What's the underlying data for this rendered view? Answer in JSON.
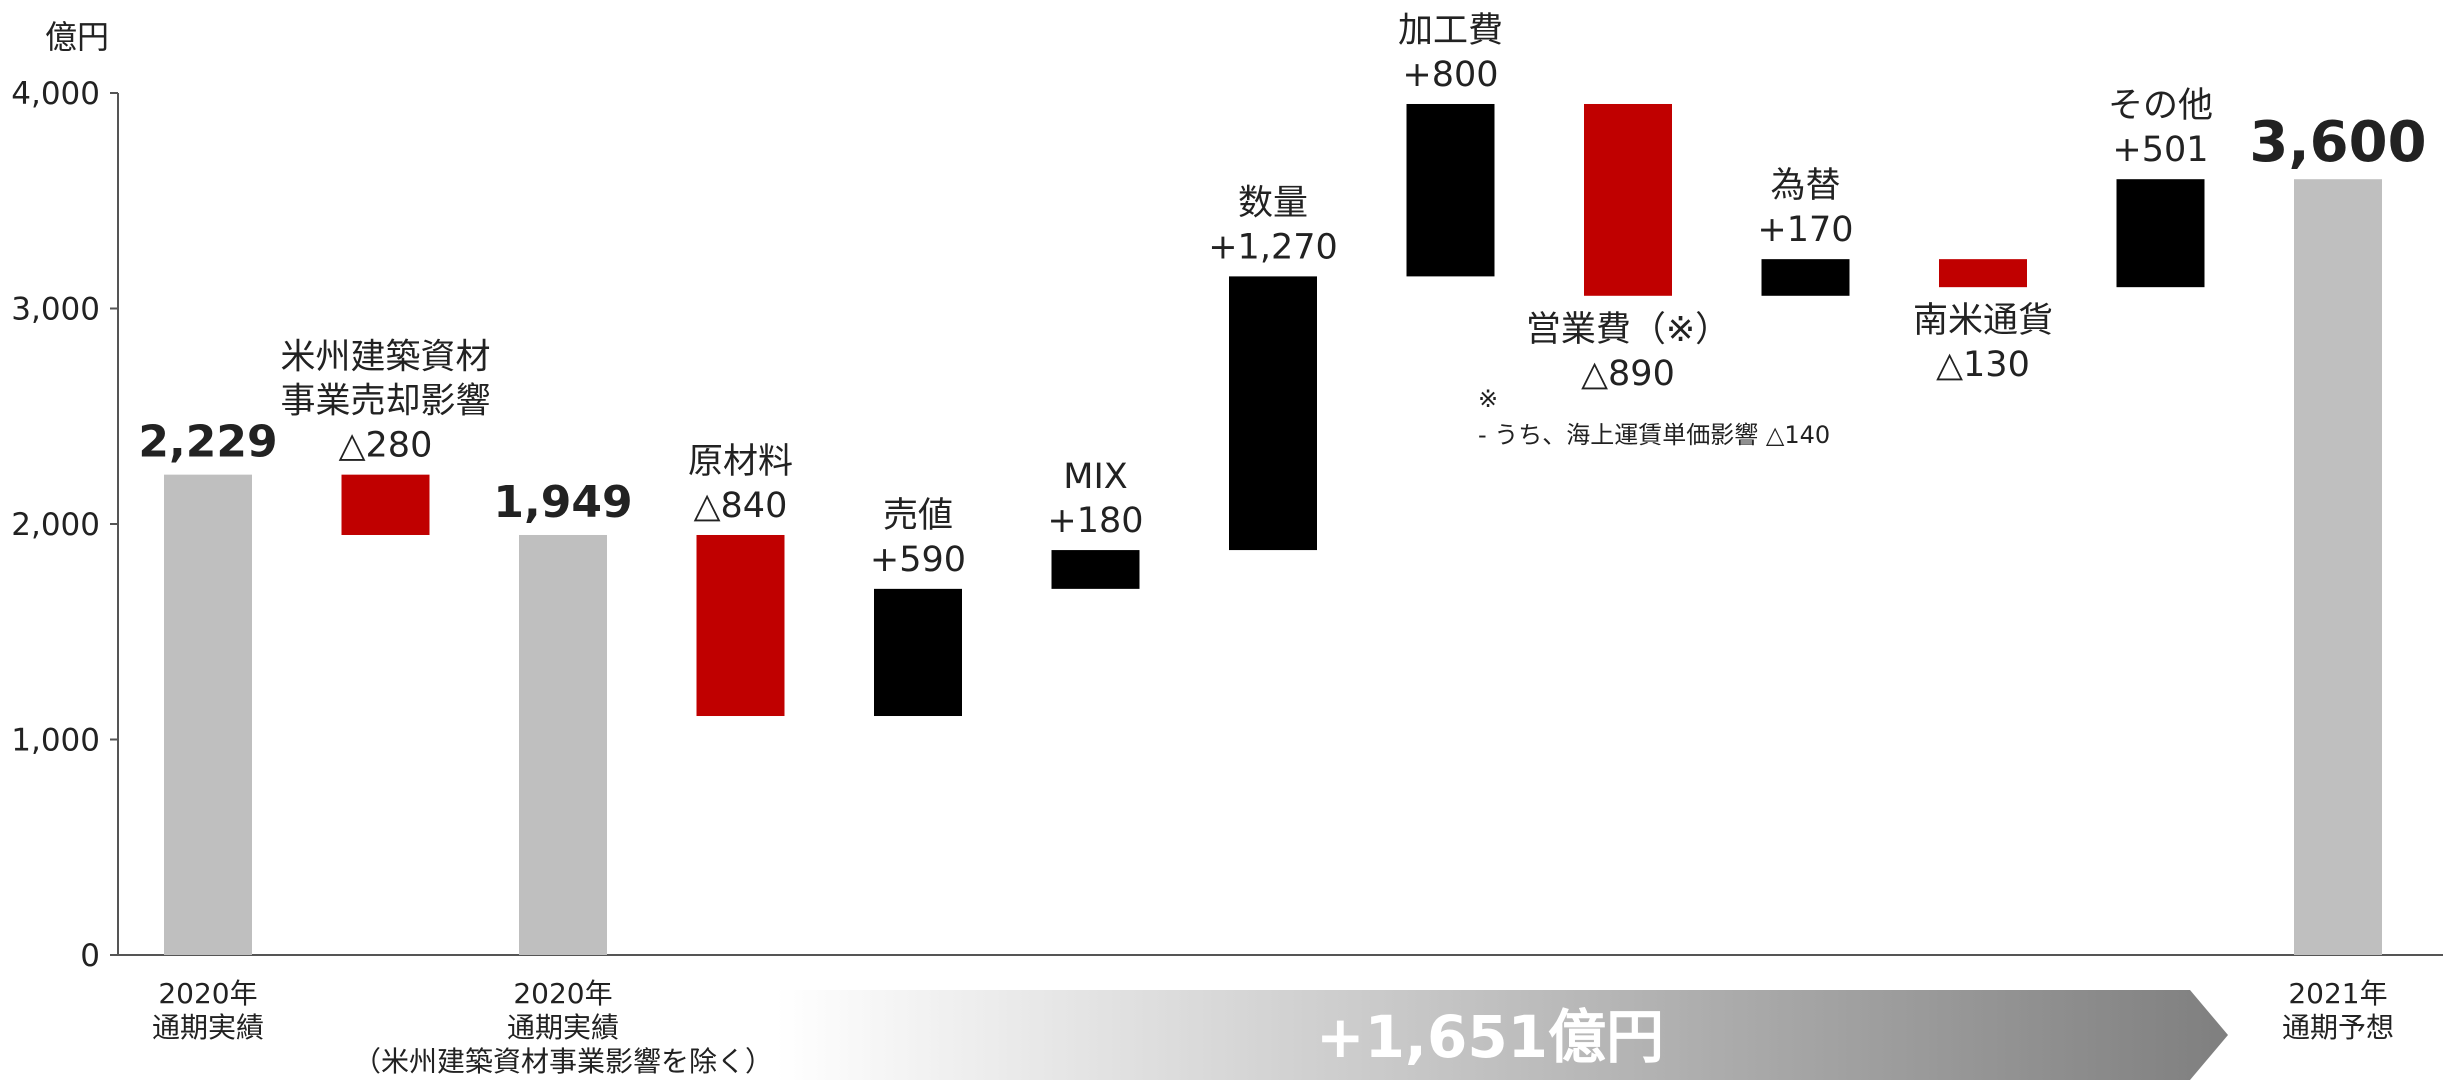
{
  "chart_data": {
    "type": "waterfall",
    "y_unit": "億円",
    "ylim": [
      0,
      4000
    ],
    "yticks": [
      "0",
      "1,000",
      "2,000",
      "3,000",
      "4,000"
    ],
    "yticks_values": [
      0,
      1000,
      2000,
      3000,
      4000
    ],
    "colors": {
      "total": "#bfbfbf",
      "decrease": "#c00000",
      "increase": "#000000",
      "axis": "#555555",
      "arrow_dark": "#7f7f7f",
      "arrow_light": "#ffffff"
    },
    "bars": [
      {
        "kind": "total",
        "start": 0,
        "end": 2229,
        "value_label": "2,229",
        "name_lines": []
      },
      {
        "kind": "decrease",
        "start": 2229,
        "end": 1949,
        "value_label": "△280",
        "name_lines": [
          "米州建築資材",
          "事業売却影響"
        ]
      },
      {
        "kind": "total",
        "start": 0,
        "end": 1949,
        "value_label": "1,949",
        "name_lines": []
      },
      {
        "kind": "decrease",
        "start": 1949,
        "end": 1109,
        "value_label": "△840",
        "name_lines": [
          "原材料"
        ]
      },
      {
        "kind": "increase",
        "start": 1109,
        "end": 1699,
        "value_label": "+590",
        "name_lines": [
          "売値"
        ]
      },
      {
        "kind": "increase",
        "start": 1699,
        "end": 1879,
        "value_label": "+180",
        "name_lines": [
          "MIX"
        ]
      },
      {
        "kind": "increase",
        "start": 1879,
        "end": 3149,
        "value_label": "+1,270",
        "name_lines": [
          "数量"
        ]
      },
      {
        "kind": "increase",
        "start": 3149,
        "end": 3949,
        "value_label": "+800",
        "name_lines": [
          "加工費"
        ]
      },
      {
        "kind": "decrease",
        "start": 3949,
        "end": 3059,
        "value_label": "△890",
        "name_lines": [
          "営業費（※）"
        ]
      },
      {
        "kind": "increase",
        "start": 3059,
        "end": 3229,
        "value_label": "+170",
        "name_lines": [
          "為替"
        ]
      },
      {
        "kind": "decrease",
        "start": 3229,
        "end": 3099,
        "value_label": "△130",
        "name_lines": [
          "南米通貨"
        ]
      },
      {
        "kind": "increase",
        "start": 3099,
        "end": 3600,
        "value_label": "+501",
        "name_lines": [
          "その他"
        ]
      },
      {
        "kind": "total",
        "start": 0,
        "end": 3600,
        "value_label": "3,600",
        "name_lines": []
      }
    ],
    "x_labels": [
      {
        "bar": 0,
        "lines": [
          "2020年",
          "通期実績"
        ]
      },
      {
        "bar": 2,
        "lines": [
          "2020年",
          "通期実績",
          "（米州建築資材事業影響を除く）"
        ]
      },
      {
        "bar": 12,
        "lines": [
          "2021年",
          "通期予想"
        ]
      }
    ],
    "note": {
      "mark": "※",
      "text": "- うち、海上運賃単価影響 △140"
    },
    "summary_arrow": {
      "label": "+1,651億円",
      "from_bar": 2,
      "to_bar": 12
    }
  }
}
